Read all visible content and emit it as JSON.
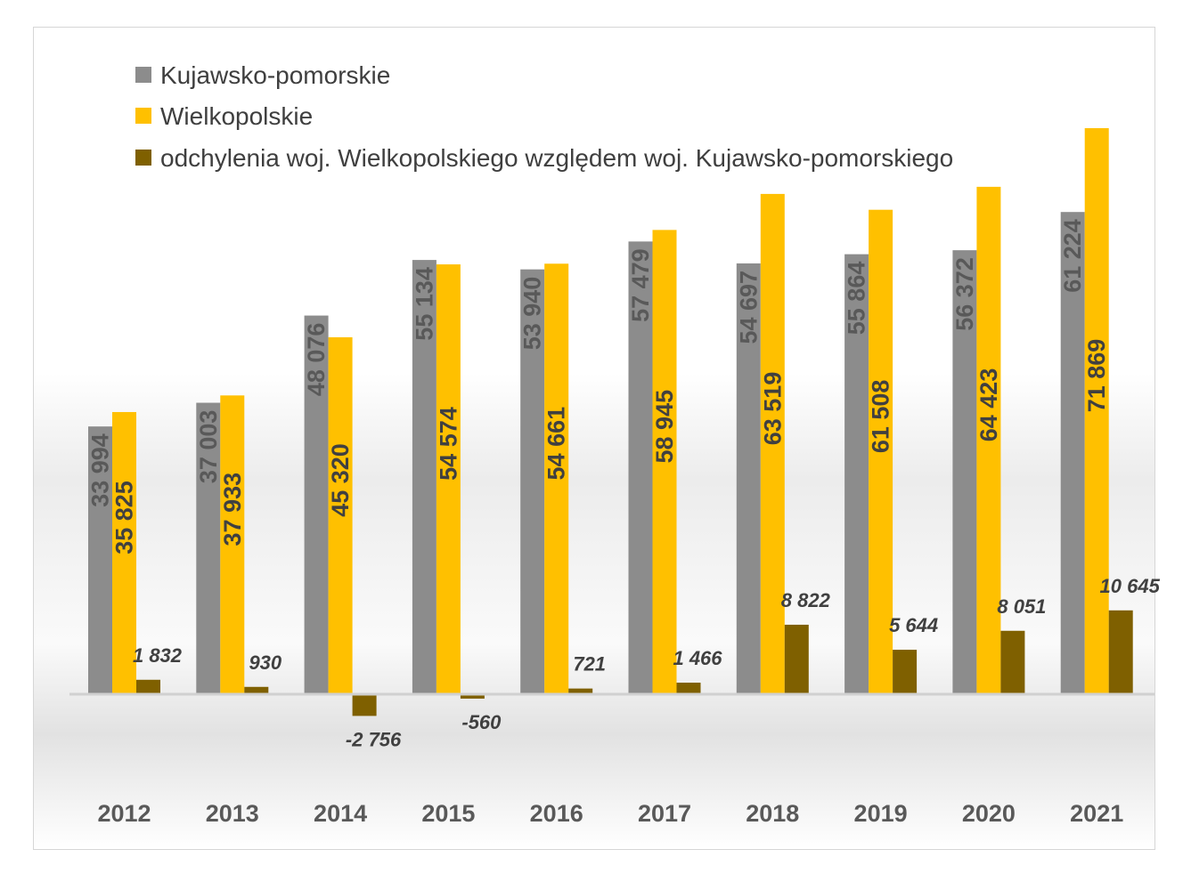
{
  "chart_data": {
    "type": "bar",
    "categories": [
      "2012",
      "2013",
      "2014",
      "2015",
      "2016",
      "2017",
      "2018",
      "2019",
      "2020",
      "2021"
    ],
    "series": [
      {
        "name": "Kujawsko-pomorskie",
        "color": "#8c8c8c",
        "values": [
          33994,
          37003,
          48076,
          55134,
          53940,
          57479,
          54697,
          55864,
          56372,
          61224
        ],
        "labels": [
          "33 994",
          "37 003",
          "48 076",
          "55 134",
          "53 940",
          "57 479",
          "54 697",
          "55 864",
          "56 372",
          "61 224"
        ]
      },
      {
        "name": "Wielkopolskie",
        "color": "#ffc000",
        "values": [
          35825,
          37933,
          45320,
          54574,
          54661,
          58945,
          63519,
          61508,
          64423,
          71869
        ],
        "labels": [
          "35 825",
          "37 933",
          "45 320",
          "54 574",
          "54 661",
          "58 945",
          "63 519",
          "61 508",
          "64 423",
          "71 869"
        ]
      },
      {
        "name": "odchylenia woj. Wielkopolskiego względem woj. Kujawsko-pomorskiego",
        "color": "#7f6000",
        "values": [
          1832,
          930,
          -2756,
          -560,
          721,
          1466,
          8822,
          5644,
          8051,
          10645
        ],
        "labels": [
          "1 832",
          "930",
          "-2 756",
          "-560",
          "721",
          "1 466",
          "8 822",
          "5 644",
          "8 051",
          "10 645"
        ]
      }
    ],
    "legend_position": "top-left",
    "grid": false
  }
}
